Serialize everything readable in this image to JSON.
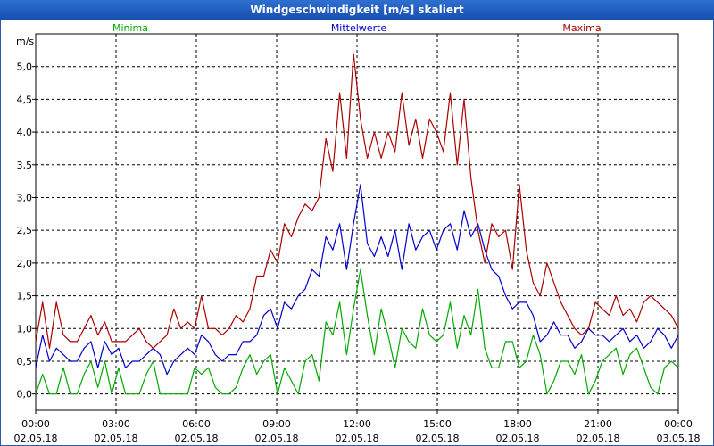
{
  "window": {
    "title": "Windgeschwindigkeit [m/s] skaliert"
  },
  "chart_data": {
    "type": "line",
    "title": "Windgeschwindigkeit [m/s] skaliert",
    "ylabel": "m/s",
    "ylim": [
      -0.25,
      5.5
    ],
    "yticks": [
      "0,0",
      "0,5",
      "1,0",
      "1,5",
      "2,0",
      "2,5",
      "3,0",
      "3,5",
      "4,0",
      "4,5",
      "5,0"
    ],
    "xlim": [
      0,
      24
    ],
    "xticks": [
      {
        "time": "00:00",
        "date": "02.05.18"
      },
      {
        "time": "03:00",
        "date": "02.05.18"
      },
      {
        "time": "06:00",
        "date": "02.05.18"
      },
      {
        "time": "09:00",
        "date": "02.05.18"
      },
      {
        "time": "12:00",
        "date": "02.05.18"
      },
      {
        "time": "15:00",
        "date": "02.05.18"
      },
      {
        "time": "18:00",
        "date": "02.05.18"
      },
      {
        "time": "21:00",
        "date": "02.05.18"
      },
      {
        "time": "00:00",
        "date": "03.05.18"
      }
    ],
    "grid": true,
    "series": [
      {
        "name": "Minima",
        "color": "#00aa00",
        "values": [
          0.0,
          0.3,
          0.0,
          0.0,
          0.4,
          0.0,
          0.0,
          0.3,
          0.5,
          0.1,
          0.5,
          0.0,
          0.4,
          0.0,
          0.0,
          0.0,
          0.3,
          0.5,
          0.0,
          0.0,
          0.0,
          0.0,
          0.0,
          0.4,
          0.3,
          0.4,
          0.1,
          0.0,
          0.0,
          0.1,
          0.4,
          0.6,
          0.3,
          0.5,
          0.6,
          0.0,
          0.4,
          0.2,
          0.0,
          0.5,
          0.6,
          0.2,
          1.1,
          0.9,
          1.4,
          0.6,
          1.3,
          1.9,
          1.2,
          0.6,
          1.3,
          0.9,
          0.4,
          1.0,
          0.8,
          0.7,
          1.3,
          0.9,
          0.8,
          0.9,
          1.4,
          0.7,
          1.2,
          0.9,
          1.6,
          0.7,
          0.4,
          0.4,
          0.8,
          0.8,
          0.4,
          0.5,
          0.9,
          0.6,
          0.0,
          0.2,
          0.5,
          0.5,
          0.3,
          0.6,
          0.0,
          0.2,
          0.5,
          0.6,
          0.7,
          0.3,
          0.6,
          0.7,
          0.4,
          0.1,
          0.0,
          0.4,
          0.5,
          0.4
        ]
      },
      {
        "name": "Mittelwerte",
        "color": "#0000cc",
        "values": [
          0.4,
          0.9,
          0.5,
          0.7,
          0.6,
          0.5,
          0.5,
          0.7,
          0.8,
          0.4,
          0.8,
          0.6,
          0.7,
          0.4,
          0.5,
          0.5,
          0.6,
          0.7,
          0.6,
          0.3,
          0.5,
          0.6,
          0.7,
          0.6,
          0.9,
          0.8,
          0.6,
          0.5,
          0.6,
          0.6,
          0.8,
          0.8,
          0.9,
          1.2,
          1.3,
          1.0,
          1.4,
          1.3,
          1.5,
          1.6,
          1.9,
          1.8,
          2.4,
          2.2,
          2.6,
          1.9,
          2.6,
          3.2,
          2.3,
          2.1,
          2.4,
          2.1,
          2.5,
          1.9,
          2.6,
          2.2,
          2.4,
          2.5,
          2.2,
          2.5,
          2.6,
          2.2,
          2.8,
          2.4,
          2.6,
          2.2,
          1.9,
          1.8,
          1.5,
          1.3,
          1.4,
          1.4,
          1.2,
          0.8,
          0.9,
          1.1,
          0.9,
          0.9,
          0.7,
          0.8,
          1.0,
          0.9,
          0.9,
          0.8,
          0.9,
          1.0,
          0.8,
          0.9,
          0.7,
          0.8,
          1.0,
          0.9,
          0.7,
          0.9
        ]
      },
      {
        "name": "Maxima",
        "color": "#aa0000",
        "values": [
          0.8,
          1.4,
          0.7,
          1.4,
          0.9,
          0.8,
          0.8,
          1.0,
          1.2,
          0.9,
          1.1,
          0.8,
          0.8,
          0.8,
          0.9,
          1.0,
          0.8,
          0.7,
          0.8,
          0.9,
          1.3,
          1.0,
          1.1,
          1.0,
          1.5,
          1.0,
          1.0,
          0.9,
          1.0,
          1.2,
          1.1,
          1.3,
          1.8,
          1.8,
          2.2,
          2.0,
          2.6,
          2.4,
          2.7,
          2.9,
          2.8,
          3.0,
          3.9,
          3.4,
          4.6,
          3.6,
          5.2,
          4.2,
          3.6,
          4.0,
          3.6,
          4.0,
          3.7,
          4.6,
          3.8,
          4.2,
          3.6,
          4.2,
          4.0,
          3.7,
          4.6,
          3.5,
          4.5,
          3.3,
          2.5,
          2.0,
          2.6,
          2.4,
          2.5,
          1.9,
          3.2,
          2.2,
          1.7,
          1.5,
          2.0,
          1.7,
          1.4,
          1.2,
          1.0,
          0.9,
          1.0,
          1.4,
          1.3,
          1.2,
          1.5,
          1.2,
          1.3,
          1.1,
          1.4,
          1.5,
          1.4,
          1.3,
          1.2,
          1.0
        ]
      }
    ]
  }
}
